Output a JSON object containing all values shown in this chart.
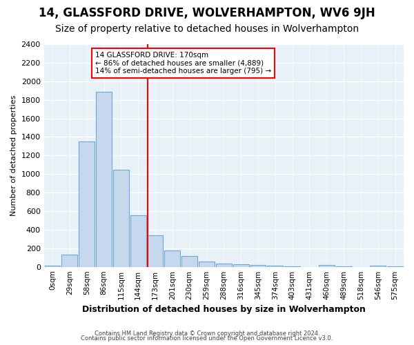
{
  "title": "14, GLASSFORD DRIVE, WOLVERHAMPTON, WV6 9JH",
  "subtitle": "Size of property relative to detached houses in Wolverhampton",
  "xlabel": "Distribution of detached houses by size in Wolverhampton",
  "ylabel": "Number of detached properties",
  "bin_labels": [
    "0sqm",
    "29sqm",
    "58sqm",
    "86sqm",
    "115sqm",
    "144sqm",
    "173sqm",
    "201sqm",
    "230sqm",
    "259sqm",
    "288sqm",
    "316sqm",
    "345sqm",
    "374sqm",
    "403sqm",
    "431sqm",
    "460sqm",
    "489sqm",
    "518sqm",
    "546sqm",
    "575sqm"
  ],
  "bar_heights": [
    15,
    135,
    1350,
    1890,
    1045,
    555,
    340,
    175,
    115,
    60,
    35,
    30,
    20,
    10,
    5,
    0,
    20,
    5,
    0,
    15,
    5
  ],
  "bar_color": "#c5d8ed",
  "bar_edge_color": "#6aaad4",
  "red_line_index": 6,
  "annotation_line1": "14 GLASSFORD DRIVE: 170sqm",
  "annotation_line2": "← 86% of detached houses are smaller (4,889)",
  "annotation_line3": "14% of semi-detached houses are larger (795) →",
  "ylim": [
    0,
    2400
  ],
  "yticks": [
    0,
    200,
    400,
    600,
    800,
    1000,
    1200,
    1400,
    1600,
    1800,
    2000,
    2200,
    2400
  ],
  "footer1": "Contains HM Land Registry data © Crown copyright and database right 2024.",
  "footer2": "Contains public sector information licensed under the Open Government Licence v3.0.",
  "background_color": "#ffffff",
  "plot_bg_color": "#e8f0f8",
  "grid_color": "#ffffff",
  "title_fontsize": 12,
  "subtitle_fontsize": 10
}
